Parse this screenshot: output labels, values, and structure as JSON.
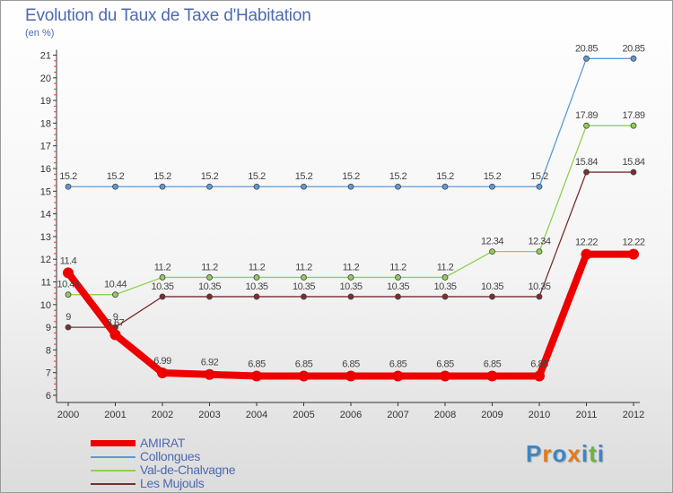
{
  "chart_data": {
    "type": "line",
    "title": "Evolution du Taux de Taxe d'Habitation",
    "subtitle": "(en %)",
    "categories": [
      "2000",
      "2001",
      "2002",
      "2003",
      "2004",
      "2005",
      "2006",
      "2007",
      "2008",
      "2009",
      "2010",
      "2011",
      "2012"
    ],
    "ylim": [
      6,
      21
    ],
    "yticks": [
      "6",
      "7",
      "8",
      "9",
      "10",
      "11",
      "12",
      "13",
      "14",
      "15",
      "16",
      "17",
      "18",
      "19",
      "20",
      "21"
    ],
    "grid": false,
    "legend_position": "bottom-left",
    "series": [
      {
        "name": "AMIRAT",
        "color": "#ee0000",
        "values": [
          11.4,
          8.67,
          6.99,
          6.92,
          6.85,
          6.85,
          6.85,
          6.85,
          6.85,
          6.85,
          6.85,
          12.22,
          12.22
        ],
        "labels": [
          "11.4",
          "8.67",
          "6.99",
          "6.92",
          "6.85",
          "6.85",
          "6.85",
          "6.85",
          "6.85",
          "6.85",
          "6.85",
          "12.22",
          "12.22"
        ]
      },
      {
        "name": "Collongues",
        "color": "#5b9bd5",
        "values": [
          15.2,
          15.2,
          15.2,
          15.2,
          15.2,
          15.2,
          15.2,
          15.2,
          15.2,
          15.2,
          15.2,
          20.85,
          20.85
        ],
        "labels": [
          "15.2",
          "15.2",
          "15.2",
          "15.2",
          "15.2",
          "15.2",
          "15.2",
          "15.2",
          "15.2",
          "15.2",
          "15.2",
          "20.85",
          "20.85"
        ]
      },
      {
        "name": "Val-de-Chalvagne",
        "color": "#8fd14f",
        "values": [
          10.44,
          10.44,
          11.2,
          11.2,
          11.2,
          11.2,
          11.2,
          11.2,
          11.2,
          12.34,
          12.34,
          17.89,
          17.89
        ],
        "labels": [
          "10.44",
          "10.44",
          "11.2",
          "11.2",
          "11.2",
          "11.2",
          "11.2",
          "11.2",
          "11.2",
          "12.34",
          "12.34",
          "17.89",
          "17.89"
        ]
      },
      {
        "name": "Les Mujouls",
        "color": "#7a2e2e",
        "values": [
          9,
          9,
          10.35,
          10.35,
          10.35,
          10.35,
          10.35,
          10.35,
          10.35,
          10.35,
          10.35,
          15.84,
          15.84
        ],
        "labels": [
          "9",
          "9",
          "10.35",
          "10.35",
          "10.35",
          "10.35",
          "10.35",
          "10.35",
          "10.35",
          "10.35",
          "10.35",
          "15.84",
          "15.84"
        ]
      }
    ]
  },
  "logo": {
    "text": "Proxiti",
    "letters": [
      "P",
      "r",
      "o",
      "x",
      "i",
      "t",
      "i"
    ],
    "colors": [
      "#3a86c8",
      "#e07b1e",
      "#3a86c8",
      "#e07b1e",
      "#3a86c8",
      "#6db33f",
      "#3a86c8"
    ]
  }
}
